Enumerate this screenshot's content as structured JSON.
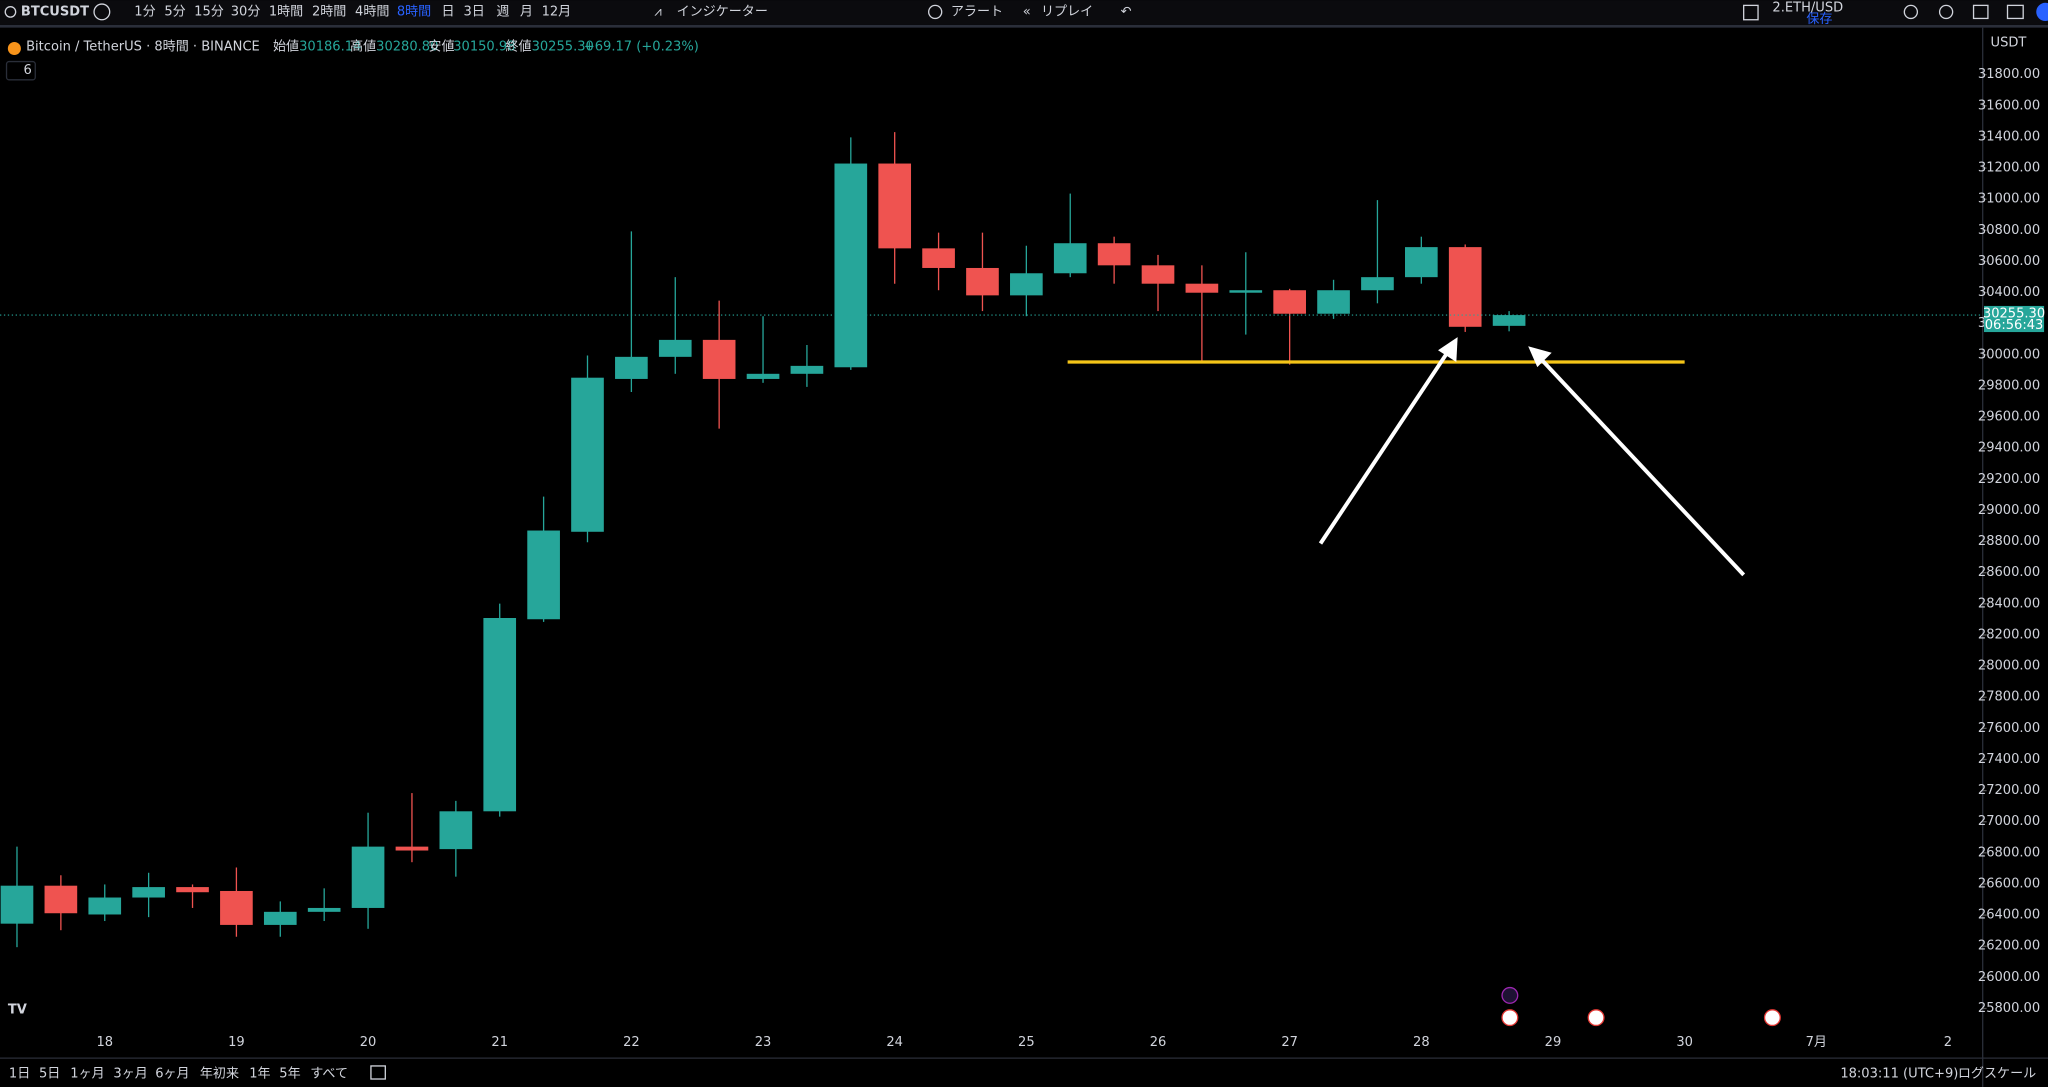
{
  "toolbar": {
    "symbol": "BTCUSDT",
    "intervals": [
      "1分",
      "5分",
      "15分",
      "30分",
      "1時間",
      "2時間",
      "4時間",
      "8時間",
      "日",
      "3日",
      "週",
      "月",
      "12月"
    ],
    "active_interval": 7,
    "indicators": "インジケーター",
    "alert": "アラート",
    "replay": "リプレイ",
    "layout_name": "2.ETH/USD",
    "save": "保存"
  },
  "legend": {
    "title": "Bitcoin / TetherUS · 8時間 · BINANCE",
    "open_label": "始値",
    "open": "30186.14",
    "high_label": "高値",
    "high": "30280.80",
    "low_label": "安値",
    "low": "30150.98",
    "close_label": "終値",
    "close": "30255.30",
    "change": "+69.17 (+0.23%)",
    "indicator_count": "6"
  },
  "chart_data": {
    "type": "candlestick",
    "currency": "USDT",
    "countdown": "06:56:43",
    "categories": [
      null,
      null,
      "18",
      null,
      null,
      "19",
      null,
      null,
      "20",
      null,
      null,
      "21",
      null,
      null,
      "22",
      null,
      null,
      "23",
      null,
      null,
      "24",
      null,
      null,
      "25",
      null,
      null,
      "26",
      null,
      null,
      "27",
      null,
      null,
      "28",
      null,
      null,
      "29",
      null,
      null,
      "30",
      null,
      null,
      "7月",
      null,
      null,
      "2"
    ],
    "open": [
      26345,
      26589,
      26404,
      26513,
      26580,
      26555,
      26337,
      26421,
      26446,
      26840,
      26824,
      27067,
      28301,
      28863,
      29845,
      29987,
      30096,
      29845,
      29878,
      29920,
      31229,
      30684,
      30558,
      30382,
      30524,
      30717,
      30575,
      30457,
      30399,
      30415,
      30264,
      30415,
      30499,
      30692,
      30186.14,
      null,
      null,
      null,
      null,
      null,
      null,
      null,
      null,
      null,
      null
    ],
    "high": [
      26840,
      26656,
      26597,
      26672,
      26597,
      26706,
      26488,
      26572,
      27058,
      27184,
      27134,
      28401,
      29089,
      29996,
      30793,
      30499,
      30348,
      30248,
      30063,
      31397,
      31431,
      30785,
      30785,
      30701,
      31036,
      30759,
      30642,
      30575,
      30659,
      30424,
      30482,
      30994,
      30759,
      30709,
      30280.8,
      null,
      null,
      null,
      null,
      null,
      null,
      null,
      null,
      null,
      null
    ],
    "low": [
      26194,
      26303,
      26362,
      26387,
      26446,
      26261,
      26261,
      26362,
      26312,
      26740,
      26647,
      27033,
      28284,
      28796,
      29761,
      29878,
      29526,
      29820,
      29794,
      29903,
      30457,
      30415,
      30281,
      30248,
      30499,
      30457,
      30281,
      29962,
      30130,
      29937,
      30231,
      30331,
      30457,
      30147,
      30150.98,
      null,
      null,
      null,
      null,
      null,
      null,
      null,
      null,
      null,
      null
    ],
    "close": [
      26589,
      26412,
      26513,
      26580,
      26547,
      26337,
      26421,
      26446,
      26840,
      26815,
      27067,
      28309,
      28871,
      29853,
      29987,
      30096,
      29845,
      29878,
      29929,
      31229,
      30684,
      30558,
      30382,
      30524,
      30717,
      30575,
      30457,
      30399,
      30415,
      30264,
      30415,
      30499,
      30692,
      30180,
      30255.3,
      null,
      null,
      null,
      null,
      null,
      null,
      null,
      null,
      null,
      null
    ],
    "up_color": "#26a69a",
    "down_color": "#ef5350",
    "ylim": [
      25649,
      32069
    ],
    "yticks": [
      {
        "value": 31800,
        "label": "31800.00"
      },
      {
        "value": 31600,
        "label": "31600.00"
      },
      {
        "value": 31400,
        "label": "31400.00"
      },
      {
        "value": 31200,
        "label": "31200.00"
      },
      {
        "value": 31000,
        "label": "31000.00"
      },
      {
        "value": 30800,
        "label": "30800.00"
      },
      {
        "value": 30600,
        "label": "30600.00"
      },
      {
        "value": 30400,
        "label": "30400.00"
      },
      {
        "value": 30200,
        "label": "30200.00"
      },
      {
        "value": 30000,
        "label": "30000.00"
      },
      {
        "value": 29800,
        "label": "29800.00"
      },
      {
        "value": 29600,
        "label": "29600.00"
      },
      {
        "value": 29400,
        "label": "29400.00"
      },
      {
        "value": 29200,
        "label": "29200.00"
      },
      {
        "value": 29000,
        "label": "29000.00"
      },
      {
        "value": 28800,
        "label": "28800.00"
      },
      {
        "value": 28600,
        "label": "28600.00"
      },
      {
        "value": 28400,
        "label": "28400.00"
      },
      {
        "value": 28200,
        "label": "28200.00"
      },
      {
        "value": 28000,
        "label": "28000.00"
      },
      {
        "value": 27800,
        "label": "27800.00"
      },
      {
        "value": 27600,
        "label": "27600.00"
      },
      {
        "value": 27400,
        "label": "27400.00"
      },
      {
        "value": 27200,
        "label": "27200.00"
      },
      {
        "value": 27000,
        "label": "27000.00"
      },
      {
        "value": 26800,
        "label": "26800.00"
      },
      {
        "value": 26600,
        "label": "26600.00"
      },
      {
        "value": 26400,
        "label": "26400.00"
      },
      {
        "value": 26200,
        "label": "26200.00"
      },
      {
        "value": 26000,
        "label": "26000.00"
      },
      {
        "value": 25800,
        "label": "25800.00"
      }
    ],
    "hline": {
      "value": 29954,
      "x": [
        24,
        38
      ],
      "color": "#f5c518"
    }
  },
  "bottom_bar": {
    "ranges": [
      "1日",
      "5日",
      "1ヶ月",
      "3ヶ月",
      "6ヶ月",
      "年初来",
      "1年",
      "5年",
      "すべて"
    ],
    "clock": "18:03:11 (UTC+9)",
    "log_scale": "ログスケール"
  }
}
